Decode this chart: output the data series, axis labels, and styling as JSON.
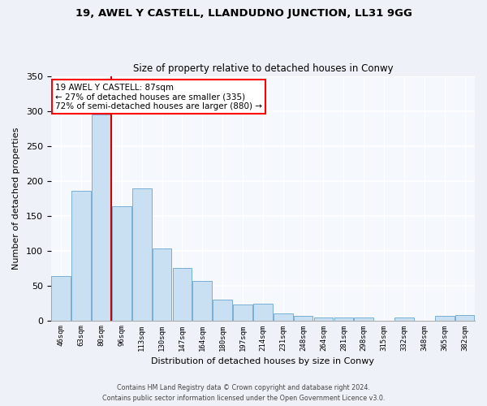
{
  "title": "19, AWEL Y CASTELL, LLANDUDNO JUNCTION, LL31 9GG",
  "subtitle": "Size of property relative to detached houses in Conwy",
  "xlabel": "Distribution of detached houses by size in Conwy",
  "ylabel": "Number of detached properties",
  "bar_labels": [
    "46sqm",
    "63sqm",
    "80sqm",
    "96sqm",
    "113sqm",
    "130sqm",
    "147sqm",
    "164sqm",
    "180sqm",
    "197sqm",
    "214sqm",
    "231sqm",
    "248sqm",
    "264sqm",
    "281sqm",
    "298sqm",
    "315sqm",
    "332sqm",
    "348sqm",
    "365sqm",
    "382sqm"
  ],
  "bar_values": [
    63,
    185,
    295,
    163,
    189,
    103,
    75,
    56,
    30,
    23,
    24,
    10,
    7,
    4,
    4,
    4,
    0,
    4,
    0,
    7,
    8
  ],
  "bar_color": "#c9dff2",
  "bar_edge_color": "#7aafd4",
  "vline_color": "#cc0000",
  "ylim": [
    0,
    350
  ],
  "yticks": [
    0,
    50,
    100,
    150,
    200,
    250,
    300,
    350
  ],
  "annotation_title": "19 AWEL Y CASTELL: 87sqm",
  "annotation_line1": "← 27% of detached houses are smaller (335)",
  "annotation_line2": "72% of semi-detached houses are larger (880) →",
  "footer1": "Contains HM Land Registry data © Crown copyright and database right 2024.",
  "footer2": "Contains public sector information licensed under the Open Government Licence v3.0.",
  "bg_color": "#eef2f8",
  "plot_bg_color": "#f5f8fd"
}
